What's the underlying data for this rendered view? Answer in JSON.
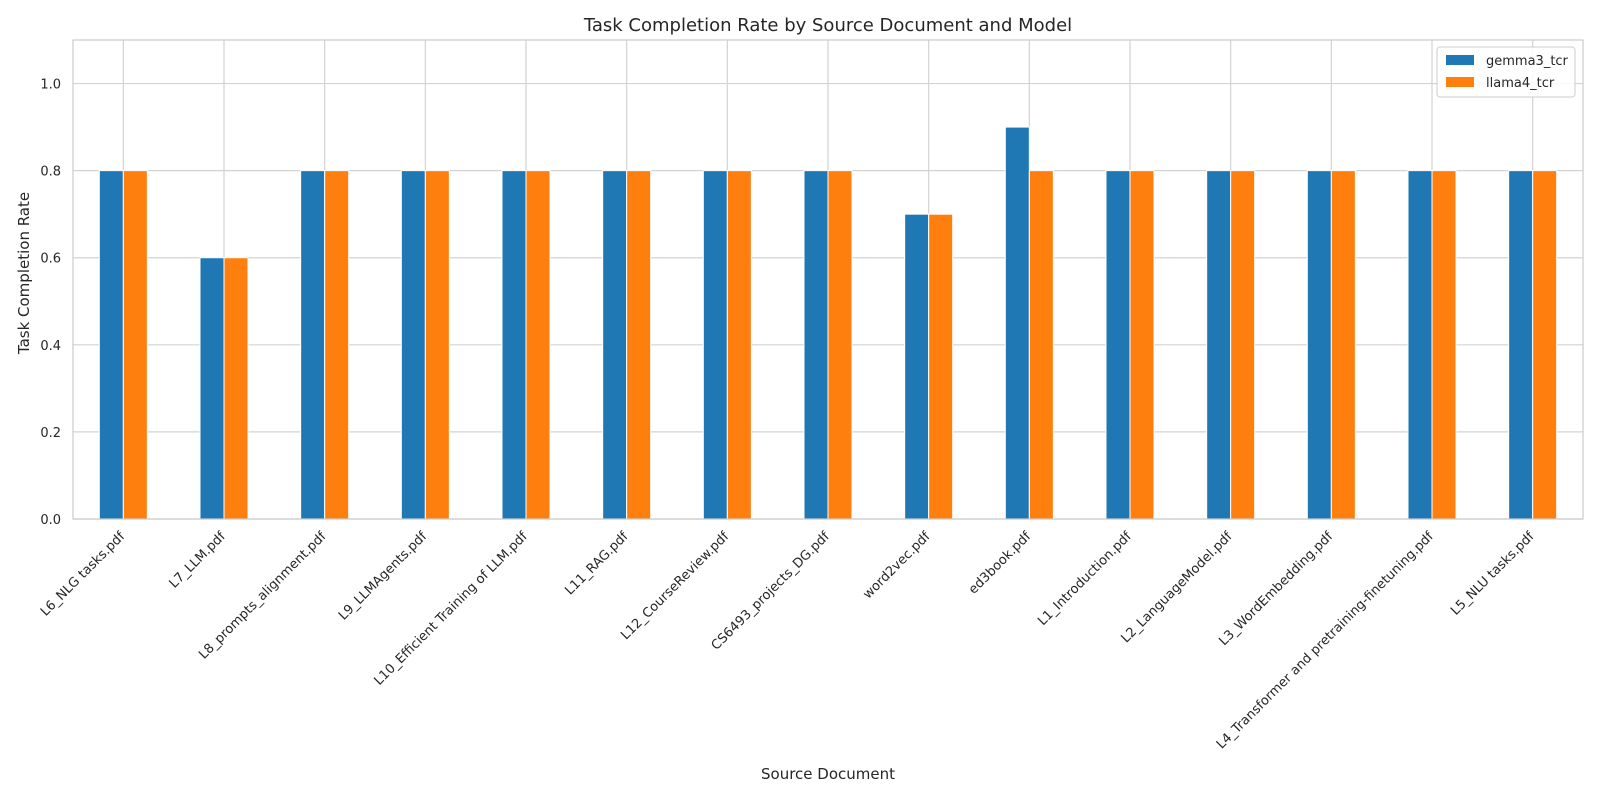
{
  "chart_data": {
    "type": "bar",
    "title": "Task Completion Rate by Source Document and Model",
    "xlabel": "Source Document",
    "ylabel": "Task Completion Rate",
    "ylim": [
      0,
      1.1
    ],
    "yticks": [
      0.0,
      0.2,
      0.4,
      0.6,
      0.8,
      1.0
    ],
    "ytick_labels": [
      "0.0",
      "0.2",
      "0.4",
      "0.6",
      "0.8",
      "1.0"
    ],
    "grid": true,
    "legend_position": "top-right",
    "categories": [
      "L6_NLG tasks.pdf",
      "L7_LLM.pdf",
      "L8_prompts_alignment.pdf",
      "L9_LLMAgents.pdf",
      "L10_Efficient Training of LLM.pdf",
      "L11_RAG.pdf",
      "L12_CourseReview.pdf",
      "CS6493_projects_DG.pdf",
      "word2vec.pdf",
      "ed3book.pdf",
      "L1_Introduction.pdf",
      "L2_LanguageModel.pdf",
      "L3_WordEmbedding.pdf",
      "L4_Transformer and pretraining-finetuning.pdf",
      "L5_NLU tasks.pdf"
    ],
    "series": [
      {
        "name": "gemma3_tcr",
        "color": "#1f77b4",
        "values": [
          0.8,
          0.6,
          0.8,
          0.8,
          0.8,
          0.8,
          0.8,
          0.8,
          0.7,
          0.9,
          0.8,
          0.8,
          0.8,
          0.8,
          0.8
        ]
      },
      {
        "name": "llama4_tcr",
        "color": "#ff7f0e",
        "values": [
          0.8,
          0.6,
          0.8,
          0.8,
          0.8,
          0.8,
          0.8,
          0.8,
          0.7,
          0.8,
          0.8,
          0.8,
          0.8,
          0.8,
          0.8
        ]
      }
    ]
  }
}
